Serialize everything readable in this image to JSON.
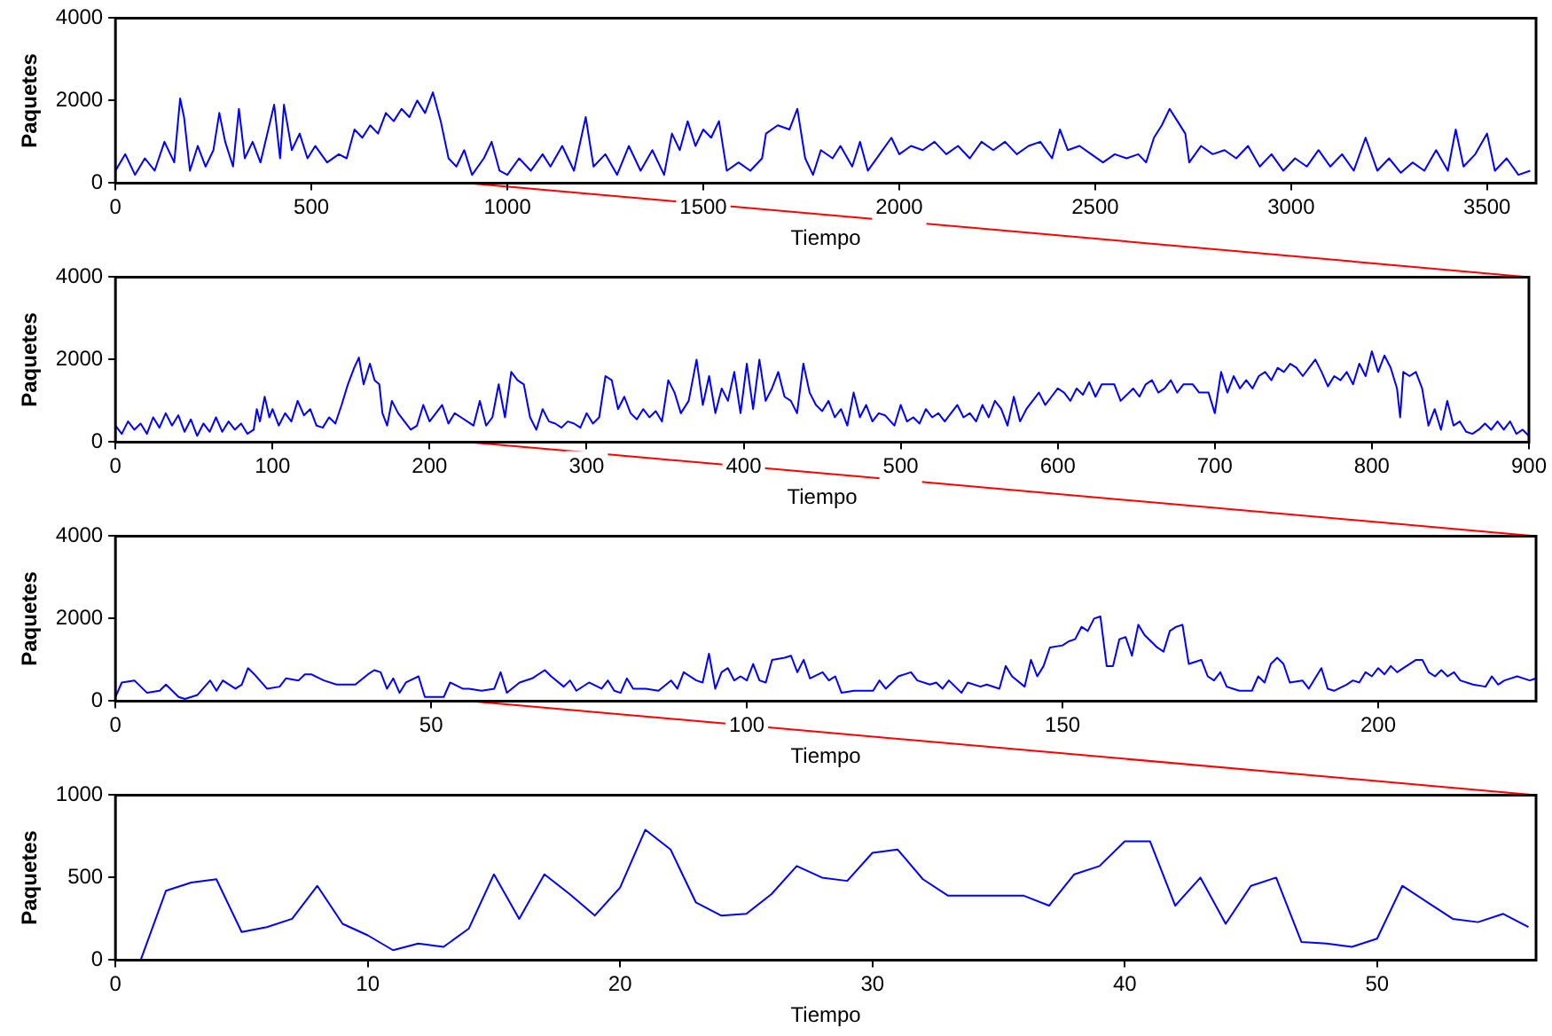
{
  "chart_data": [
    {
      "type": "line",
      "xlabel": "Tiempo",
      "ylabel": "Paquetes",
      "marker": "none",
      "xlim": [
        0,
        3625
      ],
      "xticks": [
        0,
        500,
        1000,
        1500,
        2000,
        2500,
        3000,
        3500
      ],
      "ylim": [
        0,
        4000
      ],
      "yticks": [
        0,
        2000,
        4000
      ],
      "x": [
        0,
        25,
        50,
        75,
        100,
        125,
        150,
        165,
        175,
        190,
        210,
        230,
        250,
        265,
        280,
        300,
        315,
        330,
        350,
        370,
        390,
        405,
        420,
        430,
        450,
        470,
        490,
        510,
        540,
        570,
        590,
        610,
        630,
        650,
        670,
        690,
        710,
        730,
        750,
        770,
        790,
        810,
        830,
        850,
        870,
        890,
        910,
        940,
        960,
        980,
        1000,
        1030,
        1060,
        1090,
        1110,
        1140,
        1170,
        1200,
        1220,
        1250,
        1280,
        1310,
        1340,
        1370,
        1400,
        1420,
        1440,
        1460,
        1480,
        1500,
        1520,
        1540,
        1560,
        1590,
        1620,
        1650,
        1660,
        1690,
        1720,
        1740,
        1760,
        1780,
        1800,
        1830,
        1850,
        1880,
        1900,
        1920,
        1950,
        1980,
        2000,
        2030,
        2060,
        2090,
        2120,
        2150,
        2180,
        2210,
        2240,
        2270,
        2300,
        2330,
        2360,
        2390,
        2410,
        2430,
        2460,
        2490,
        2520,
        2550,
        2580,
        2610,
        2630,
        2650,
        2670,
        2690,
        2710,
        2730,
        2740,
        2770,
        2800,
        2830,
        2860,
        2890,
        2920,
        2950,
        2980,
        3010,
        3040,
        3070,
        3100,
        3130,
        3160,
        3190,
        3220,
        3250,
        3280,
        3310,
        3340,
        3370,
        3400,
        3420,
        3440,
        3470,
        3500,
        3520,
        3550,
        3580,
        3610
      ],
      "series": [
        {
          "color": "#0000ff",
          "values": [
            300,
            700,
            200,
            600,
            300,
            1000,
            500,
            2050,
            1600,
            300,
            900,
            400,
            800,
            1700,
            1000,
            400,
            1800,
            600,
            1000,
            500,
            1300,
            1900,
            600,
            1900,
            800,
            1200,
            600,
            900,
            500,
            700,
            600,
            1300,
            1100,
            1400,
            1200,
            1700,
            1500,
            1800,
            1600,
            2000,
            1700,
            2200,
            1500,
            600,
            400,
            800,
            200,
            600,
            1000,
            300,
            200,
            600,
            300,
            700,
            400,
            900,
            300,
            1600,
            400,
            700,
            200,
            900,
            300,
            800,
            200,
            1200,
            800,
            1500,
            900,
            1300,
            1100,
            1500,
            300,
            500,
            300,
            600,
            1200,
            1400,
            1300,
            1800,
            600,
            200,
            800,
            600,
            900,
            400,
            1000,
            300,
            700,
            1100,
            700,
            900,
            800,
            1000,
            700,
            900,
            600,
            1000,
            800,
            1000,
            700,
            900,
            1000,
            600,
            1300,
            800,
            900,
            700,
            500,
            700,
            600,
            700,
            500,
            1100,
            1400,
            1800,
            1500,
            1200,
            500,
            900,
            700,
            800,
            600,
            900,
            400,
            700,
            300,
            600,
            400,
            800,
            400,
            700,
            300,
            1100,
            300,
            600,
            250,
            500,
            300,
            800,
            300,
            1300,
            400,
            700,
            1200,
            300,
            600,
            200,
            300
          ]
        }
      ]
    },
    {
      "type": "line",
      "xlabel": "Tiempo",
      "ylabel": "Paquetes",
      "marker": "none",
      "xlim": [
        0,
        900
      ],
      "xticks": [
        0,
        100,
        200,
        300,
        400,
        500,
        600,
        700,
        800,
        900
      ],
      "ylim": [
        0,
        4000
      ],
      "yticks": [
        0,
        2000,
        4000
      ],
      "x": [
        0,
        4,
        8,
        12,
        16,
        20,
        24,
        28,
        32,
        36,
        40,
        44,
        48,
        52,
        56,
        60,
        64,
        68,
        72,
        76,
        80,
        84,
        88,
        90,
        92,
        95,
        98,
        100,
        104,
        108,
        112,
        116,
        120,
        124,
        128,
        132,
        136,
        140,
        144,
        148,
        152,
        155,
        158,
        162,
        165,
        168,
        170,
        173,
        176,
        180,
        184,
        188,
        192,
        196,
        200,
        204,
        208,
        212,
        216,
        220,
        224,
        228,
        232,
        236,
        240,
        244,
        248,
        252,
        256,
        260,
        264,
        268,
        272,
        276,
        280,
        284,
        288,
        292,
        296,
        300,
        304,
        308,
        312,
        316,
        320,
        324,
        328,
        332,
        336,
        340,
        344,
        348,
        352,
        356,
        360,
        365,
        370,
        374,
        378,
        382,
        386,
        390,
        394,
        398,
        402,
        406,
        410,
        414,
        418,
        422,
        426,
        430,
        434,
        438,
        442,
        446,
        450,
        454,
        458,
        462,
        466,
        470,
        474,
        478,
        482,
        486,
        490,
        496,
        500,
        504,
        508,
        512,
        516,
        520,
        524,
        528,
        532,
        536,
        540,
        544,
        548,
        552,
        556,
        560,
        564,
        568,
        572,
        576,
        580,
        584,
        588,
        592,
        596,
        600,
        604,
        608,
        612,
        616,
        620,
        624,
        628,
        636,
        640,
        644,
        648,
        652,
        656,
        660,
        664,
        668,
        672,
        676,
        680,
        686,
        690,
        696,
        700,
        704,
        708,
        712,
        716,
        720,
        724,
        728,
        732,
        736,
        740,
        744,
        748,
        752,
        756,
        760,
        764,
        768,
        772,
        776,
        780,
        784,
        788,
        792,
        796,
        800,
        804,
        808,
        812,
        816,
        818,
        820,
        824,
        828,
        832,
        836,
        840,
        844,
        848,
        852,
        856,
        860,
        864,
        868,
        872,
        876,
        880,
        884,
        888,
        892,
        896,
        900
      ],
      "series": [
        {
          "color": "#0000ff",
          "values": [
            400,
            200,
            500,
            300,
            450,
            200,
            600,
            350,
            700,
            400,
            650,
            250,
            550,
            150,
            450,
            250,
            600,
            250,
            500,
            300,
            450,
            200,
            300,
            800,
            500,
            1100,
            600,
            800,
            400,
            700,
            500,
            1000,
            650,
            800,
            400,
            350,
            600,
            450,
            900,
            1400,
            1800,
            2050,
            1400,
            1900,
            1500,
            1400,
            700,
            400,
            1000,
            700,
            500,
            300,
            400,
            900,
            500,
            700,
            900,
            450,
            700,
            600,
            500,
            400,
            1000,
            400,
            600,
            1400,
            600,
            1700,
            1500,
            1400,
            600,
            300,
            800,
            500,
            450,
            350,
            500,
            450,
            350,
            700,
            450,
            600,
            1600,
            1500,
            800,
            1100,
            700,
            550,
            800,
            600,
            750,
            500,
            1500,
            1200,
            700,
            1000,
            2000,
            900,
            1600,
            700,
            1300,
            1000,
            1700,
            700,
            1900,
            800,
            2000,
            1000,
            1300,
            1700,
            1100,
            1000,
            700,
            1900,
            1200,
            900,
            750,
            1000,
            600,
            800,
            400,
            1200,
            600,
            900,
            500,
            700,
            650,
            400,
            900,
            500,
            600,
            450,
            800,
            600,
            700,
            500,
            700,
            900,
            600,
            700,
            500,
            900,
            600,
            1000,
            800,
            400,
            1100,
            500,
            800,
            1000,
            1200,
            900,
            1100,
            1300,
            1200,
            1000,
            1300,
            1150,
            1450,
            1100,
            1400,
            1400,
            1000,
            1150,
            1300,
            1100,
            1400,
            1500,
            1200,
            1300,
            1500,
            1200,
            1400,
            1400,
            1200,
            1200,
            700,
            1700,
            1200,
            1600,
            1300,
            1500,
            1300,
            1600,
            1700,
            1500,
            1800,
            1700,
            1900,
            1800,
            1600,
            1800,
            2000,
            1700,
            1350,
            1600,
            1500,
            1700,
            1400,
            1900,
            1600,
            2200,
            1700,
            2100,
            1800,
            1300,
            600,
            1700,
            1600,
            1700,
            1300,
            400,
            800,
            300,
            1000,
            400,
            500,
            250,
            200,
            300,
            450,
            300,
            500,
            300,
            500,
            200,
            300,
            150
          ]
        }
      ]
    },
    {
      "type": "line",
      "xlabel": "Tiempo",
      "ylabel": "Paquetes",
      "marker": "none",
      "xlim": [
        0,
        225
      ],
      "xticks": [
        0,
        50,
        100,
        150,
        200
      ],
      "ylim": [
        0,
        4000
      ],
      "yticks": [
        0,
        2000,
        4000
      ],
      "x": [
        0,
        1,
        3,
        5,
        7,
        8,
        10,
        11,
        13,
        15,
        16,
        17,
        19,
        20,
        21,
        22,
        24,
        26,
        27,
        29,
        30,
        31,
        33,
        35,
        38,
        40,
        41,
        42,
        43,
        44,
        45,
        46,
        48,
        49,
        52,
        53,
        55,
        56,
        58,
        60,
        61,
        62,
        64,
        66,
        68,
        69,
        71,
        72,
        73,
        75,
        77,
        78,
        79,
        80,
        81,
        82,
        84,
        86,
        88,
        89,
        90,
        92,
        93,
        94,
        95,
        96,
        97,
        98,
        99,
        100,
        101,
        102,
        103,
        104,
        106,
        107,
        108,
        109,
        110,
        112,
        113,
        114,
        115,
        117,
        120,
        121,
        122,
        124,
        126,
        127,
        129,
        130,
        131,
        132,
        134,
        135,
        137,
        138,
        140,
        141,
        142,
        144,
        145,
        146,
        147,
        148,
        150,
        151,
        152,
        153,
        154,
        155,
        156,
        157,
        158,
        159,
        160,
        161,
        162,
        163,
        165,
        166,
        167,
        168,
        169,
        170,
        171,
        172,
        173,
        174,
        175,
        176,
        177,
        178,
        180,
        181,
        182,
        183,
        184,
        185,
        186,
        188,
        189,
        191,
        192,
        193,
        195,
        196,
        197,
        198,
        199,
        200,
        201,
        202,
        203,
        204,
        206,
        207,
        208,
        209,
        210,
        211,
        212,
        213,
        215,
        217,
        218,
        219,
        220,
        222,
        224,
        225
      ],
      "series": [
        {
          "color": "#0000ff",
          "values": [
            100,
            450,
            500,
            200,
            250,
            400,
            100,
            50,
            150,
            500,
            250,
            500,
            300,
            400,
            800,
            650,
            300,
            350,
            550,
            500,
            650,
            650,
            500,
            400,
            400,
            650,
            750,
            700,
            300,
            550,
            200,
            450,
            600,
            100,
            100,
            450,
            300,
            300,
            250,
            300,
            700,
            200,
            450,
            550,
            750,
            600,
            350,
            500,
            250,
            450,
            300,
            500,
            250,
            200,
            550,
            300,
            300,
            250,
            500,
            300,
            700,
            500,
            450,
            1150,
            300,
            700,
            800,
            500,
            600,
            500,
            900,
            500,
            450,
            1000,
            1050,
            1100,
            700,
            1000,
            550,
            700,
            500,
            600,
            200,
            250,
            250,
            500,
            300,
            600,
            700,
            500,
            400,
            450,
            300,
            500,
            200,
            450,
            350,
            400,
            300,
            850,
            600,
            350,
            1000,
            600,
            850,
            1300,
            1350,
            1450,
            1500,
            1800,
            1700,
            2000,
            2050,
            850,
            850,
            1500,
            1550,
            1100,
            1850,
            1600,
            1300,
            1200,
            1700,
            1800,
            1850,
            900,
            950,
            1000,
            600,
            500,
            700,
            350,
            300,
            250,
            250,
            600,
            450,
            900,
            1050,
            900,
            450,
            500,
            300,
            800,
            300,
            250,
            400,
            500,
            450,
            700,
            600,
            800,
            650,
            850,
            700,
            800,
            1000,
            1000,
            700,
            600,
            750,
            600,
            700,
            500,
            400,
            350,
            600,
            400,
            500,
            600,
            500,
            550
          ]
        }
      ]
    },
    {
      "type": "line",
      "xlabel": "Tiempo",
      "ylabel": "Paquetes",
      "marker": "none",
      "xlim": [
        0,
        56.3
      ],
      "xticks": [
        0,
        10,
        20,
        30,
        40,
        50
      ],
      "ylim": [
        0,
        1000
      ],
      "yticks": [
        0,
        500,
        1000
      ],
      "x": [
        1,
        2,
        3,
        4,
        5,
        6,
        7,
        8,
        9,
        10,
        11,
        12,
        13,
        14,
        15,
        16,
        17,
        18,
        19,
        20,
        21,
        22,
        23,
        24,
        25,
        26,
        27,
        28,
        29,
        30,
        31,
        32,
        33,
        34,
        35,
        36,
        37,
        38,
        39,
        40,
        41,
        42,
        43,
        44,
        45,
        46,
        47,
        48,
        49,
        50,
        51,
        52,
        53,
        54,
        55,
        56
      ],
      "series": [
        {
          "color": "#0000ff",
          "values": [
            0,
            420,
            470,
            490,
            170,
            200,
            250,
            450,
            220,
            150,
            60,
            100,
            80,
            190,
            520,
            250,
            520,
            400,
            270,
            440,
            790,
            670,
            350,
            270,
            280,
            400,
            570,
            500,
            480,
            650,
            670,
            490,
            390,
            390,
            390,
            390,
            330,
            520,
            570,
            720,
            720,
            330,
            500,
            220,
            450,
            500,
            110,
            100,
            80,
            130,
            450,
            350,
            250,
            230,
            280,
            200
          ]
        }
      ]
    }
  ]
}
